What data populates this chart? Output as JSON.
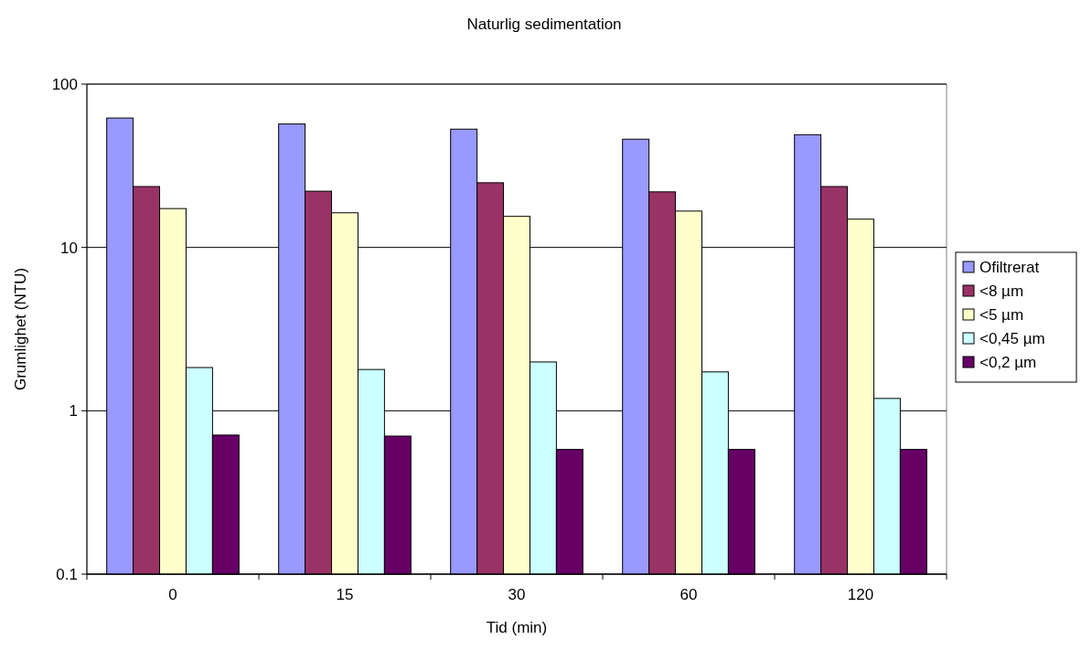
{
  "chart_data": {
    "type": "bar",
    "title": "Naturlig sedimentation",
    "xlabel": "Tid (min)",
    "ylabel": "Grumlighet (NTU)",
    "categories": [
      "0",
      "15",
      "30",
      "60",
      "120"
    ],
    "series": [
      {
        "name": "Ofiltrerat",
        "color": "#9999ff",
        "values": [
          62,
          57,
          53,
          46,
          49
        ]
      },
      {
        "name": "<8 µm",
        "color": "#993366",
        "values": [
          23.6,
          22.1,
          24.9,
          21.9,
          23.6
        ]
      },
      {
        "name": "<5 µm",
        "color": "#ffffcc",
        "values": [
          17.3,
          16.3,
          15.5,
          16.7,
          14.9
        ]
      },
      {
        "name": "<0,45 µm",
        "color": "#ccffff",
        "values": [
          1.84,
          1.79,
          1.99,
          1.73,
          1.19
        ]
      },
      {
        "name": "<0,2 µm",
        "color": "#660066",
        "values": [
          0.71,
          0.7,
          0.58,
          0.58,
          0.58
        ]
      }
    ],
    "log": true,
    "ylim": [
      0.1,
      100
    ],
    "yticks": [
      0.1,
      1,
      10,
      100
    ],
    "grid": "y",
    "legend": "right"
  }
}
